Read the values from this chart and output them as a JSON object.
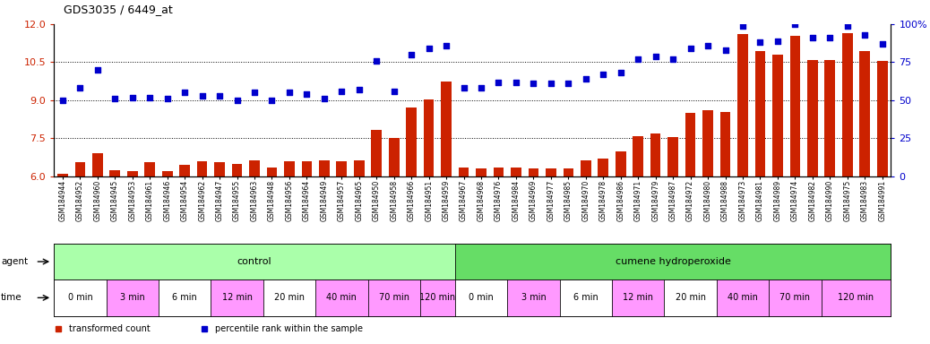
{
  "title": "GDS3035 / 6449_at",
  "samples": [
    "GSM184944",
    "GSM184952",
    "GSM184960",
    "GSM184945",
    "GSM184953",
    "GSM184961",
    "GSM184946",
    "GSM184954",
    "GSM184962",
    "GSM184947",
    "GSM184955",
    "GSM184963",
    "GSM184948",
    "GSM184956",
    "GSM184964",
    "GSM184949",
    "GSM184957",
    "GSM184965",
    "GSM184950",
    "GSM184958",
    "GSM184966",
    "GSM184951",
    "GSM184959",
    "GSM184967",
    "GSM184968",
    "GSM184976",
    "GSM184984",
    "GSM184969",
    "GSM184977",
    "GSM184985",
    "GSM184970",
    "GSM184978",
    "GSM184986",
    "GSM184971",
    "GSM184979",
    "GSM184987",
    "GSM184972",
    "GSM184980",
    "GSM184988",
    "GSM184973",
    "GSM184981",
    "GSM184989",
    "GSM184974",
    "GSM184982",
    "GSM184990",
    "GSM184975",
    "GSM184983",
    "GSM184991"
  ],
  "transformed_count": [
    6.1,
    6.55,
    6.93,
    6.25,
    6.2,
    6.55,
    6.2,
    6.45,
    6.6,
    6.55,
    6.5,
    6.65,
    6.35,
    6.6,
    6.6,
    6.65,
    6.6,
    6.65,
    7.85,
    7.5,
    8.7,
    9.05,
    9.75,
    6.35,
    6.3,
    6.35,
    6.35,
    6.3,
    6.3,
    6.3,
    6.65,
    6.7,
    7.0,
    7.6,
    7.7,
    7.55,
    8.5,
    8.6,
    8.55,
    11.6,
    10.95,
    10.8,
    11.55,
    10.6,
    10.6,
    11.65,
    10.95,
    10.55
  ],
  "percentile_rank_pct": [
    50,
    58,
    70,
    51,
    52,
    52,
    51,
    55,
    53,
    53,
    50,
    55,
    50,
    55,
    54,
    51,
    56,
    57,
    76,
    56,
    80,
    84,
    86,
    58,
    58,
    62,
    62,
    61,
    61,
    61,
    64,
    67,
    68,
    77,
    79,
    77,
    84,
    86,
    83,
    99,
    88,
    89,
    100,
    91,
    91,
    99,
    93,
    87
  ],
  "bar_color": "#cc2200",
  "dot_color": "#0000cc",
  "ylim_left": [
    6.0,
    12.0
  ],
  "yticks_left": [
    6.0,
    7.5,
    9.0,
    10.5,
    12.0
  ],
  "ylim_right": [
    0,
    100
  ],
  "yticks_right": [
    0,
    25,
    50,
    75,
    100
  ],
  "ytick_labels_right": [
    "0",
    "25",
    "50",
    "75",
    "100%"
  ],
  "agent_groups": [
    {
      "label": "control",
      "start": 0,
      "end": 23,
      "color": "#aaffaa"
    },
    {
      "label": "cumene hydroperoxide",
      "start": 23,
      "end": 48,
      "color": "#66dd66"
    }
  ],
  "time_groups": [
    {
      "label": "0 min",
      "start": 0,
      "end": 3,
      "color": "#ffffff"
    },
    {
      "label": "3 min",
      "start": 3,
      "end": 6,
      "color": "#ff99ff"
    },
    {
      "label": "6 min",
      "start": 6,
      "end": 9,
      "color": "#ffffff"
    },
    {
      "label": "12 min",
      "start": 9,
      "end": 12,
      "color": "#ff99ff"
    },
    {
      "label": "20 min",
      "start": 12,
      "end": 15,
      "color": "#ffffff"
    },
    {
      "label": "40 min",
      "start": 15,
      "end": 18,
      "color": "#ff99ff"
    },
    {
      "label": "70 min",
      "start": 18,
      "end": 21,
      "color": "#ff99ff"
    },
    {
      "label": "120 min",
      "start": 21,
      "end": 23,
      "color": "#ff99ff"
    },
    {
      "label": "0 min",
      "start": 23,
      "end": 26,
      "color": "#ffffff"
    },
    {
      "label": "3 min",
      "start": 26,
      "end": 29,
      "color": "#ff99ff"
    },
    {
      "label": "6 min",
      "start": 29,
      "end": 32,
      "color": "#ffffff"
    },
    {
      "label": "12 min",
      "start": 32,
      "end": 35,
      "color": "#ff99ff"
    },
    {
      "label": "20 min",
      "start": 35,
      "end": 38,
      "color": "#ffffff"
    },
    {
      "label": "40 min",
      "start": 38,
      "end": 41,
      "color": "#ff99ff"
    },
    {
      "label": "70 min",
      "start": 41,
      "end": 44,
      "color": "#ff99ff"
    },
    {
      "label": "120 min",
      "start": 44,
      "end": 48,
      "color": "#ff99ff"
    }
  ],
  "legend_items": [
    {
      "label": "transformed count",
      "color": "#cc2200"
    },
    {
      "label": "percentile rank within the sample",
      "color": "#0000cc"
    }
  ],
  "background_color": "#ffffff"
}
